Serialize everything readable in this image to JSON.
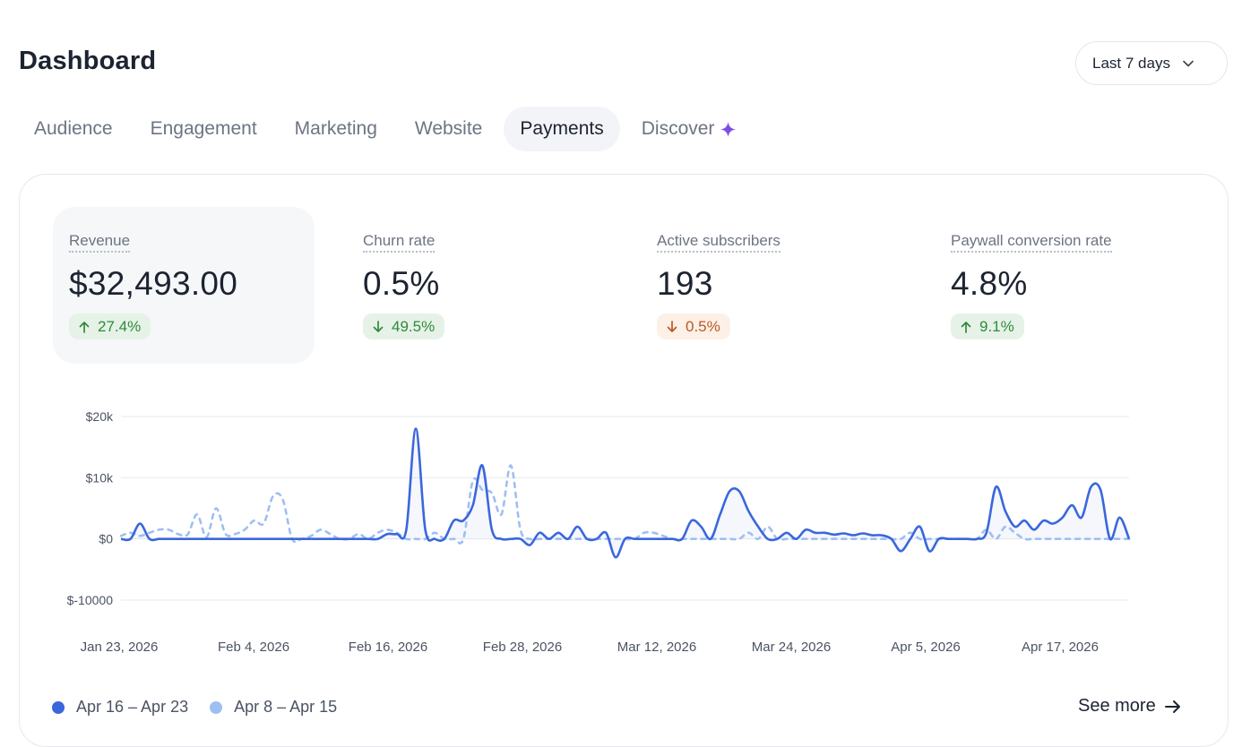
{
  "header": {
    "title": "Dashboard",
    "range_label": "Last 7 days"
  },
  "tabs": [
    {
      "label": "Audience",
      "active": false
    },
    {
      "label": "Engagement",
      "active": false
    },
    {
      "label": "Marketing",
      "active": false
    },
    {
      "label": "Website",
      "active": false
    },
    {
      "label": "Payments",
      "active": true
    },
    {
      "label": "Discover",
      "active": false
    }
  ],
  "metrics": [
    {
      "label": "Revenue",
      "value": "$32,493.00",
      "change": "27.4%",
      "direction": "up",
      "sentiment": "good"
    },
    {
      "label": "Churn rate",
      "value": "0.5%",
      "change": "49.5%",
      "direction": "down",
      "sentiment": "good"
    },
    {
      "label": "Active subscribers",
      "value": "193",
      "change": "0.5%",
      "direction": "down",
      "sentiment": "bad"
    },
    {
      "label": "Paywall conversion rate",
      "value": "4.8%",
      "change": "9.1%",
      "direction": "up",
      "sentiment": "good"
    }
  ],
  "colors": {
    "current": "#3a67dc",
    "previous": "#9ebff2",
    "good_text": "#2f8a3b",
    "bad_text": "#b75a22",
    "sparkle": "#7b4fe0"
  },
  "chart_data": {
    "type": "line",
    "y_ticks": [
      "$20k",
      "$10k",
      "$0",
      "$-10000"
    ],
    "ylim": [
      -10000,
      20000
    ],
    "x_tick_labels": [
      "Jan 23, 2026",
      "Feb 4, 2026",
      "Feb 16, 2026",
      "Feb 28, 2026",
      "Mar 12, 2026",
      "Mar 24, 2026",
      "Apr 5, 2026",
      "Apr 17, 2026"
    ],
    "grid": true,
    "legend_position": "bottom-left",
    "x_start": "2026-01-23",
    "x_end": "2026-04-23",
    "series": [
      {
        "name": "Apr 16 – Apr 23",
        "style": "solid",
        "values": [
          0,
          0,
          2500,
          0,
          0,
          0,
          0,
          0,
          0,
          0,
          0,
          0,
          0,
          0,
          0,
          0,
          0,
          0,
          0,
          0,
          0,
          0,
          0,
          0,
          0,
          0,
          0,
          0,
          800,
          800,
          1500,
          18000,
          1500,
          0,
          0,
          3000,
          3000,
          5500,
          12000,
          1500,
          0,
          0,
          0,
          -1000,
          1000,
          0,
          1000,
          0,
          2000,
          0,
          0,
          1000,
          -3000,
          0,
          0,
          0,
          0,
          0,
          0,
          0,
          3000,
          2000,
          0,
          4000,
          7800,
          7800,
          4500,
          2000,
          0,
          0,
          1000,
          0,
          1500,
          1000,
          1000,
          700,
          900,
          600,
          900,
          600,
          600,
          0,
          -2000,
          0,
          2000,
          -2000,
          0,
          0,
          0,
          0,
          0,
          1000,
          8500,
          4500,
          2000,
          3000,
          1500,
          3000,
          2500,
          3500,
          5500,
          3500,
          8500,
          8000,
          0,
          3500,
          0
        ]
      },
      {
        "name": "Apr 8 – Apr 15",
        "style": "dashed",
        "values": [
          500,
          1000,
          500,
          1000,
          1500,
          1500,
          800,
          700,
          4000,
          300,
          5000,
          800,
          800,
          1500,
          3000,
          2500,
          7000,
          6500,
          0,
          0,
          500,
          1500,
          800,
          0,
          0,
          800,
          0,
          1000,
          1500,
          1000,
          0,
          0,
          0,
          1000,
          0,
          0,
          0,
          9500,
          8000,
          7500,
          4000,
          12000,
          1500,
          0,
          0,
          0,
          0,
          0,
          0,
          0,
          0,
          0,
          0,
          0,
          0,
          1000,
          1000,
          500,
          0,
          0,
          0,
          0,
          0,
          0,
          0,
          0,
          1000,
          0,
          2000,
          0,
          0,
          0,
          0,
          0,
          0,
          0,
          0,
          0,
          0,
          0,
          0,
          0,
          0,
          1000,
          0,
          0,
          0,
          0,
          0,
          0,
          0,
          1500,
          0,
          2000,
          1000,
          0,
          0,
          0,
          0,
          0,
          0,
          0,
          0,
          0,
          0,
          0,
          0
        ]
      }
    ]
  },
  "legend": {
    "current": "Apr 16 – Apr 23",
    "previous": "Apr 8 – Apr 15"
  },
  "footer": {
    "see_more_label": "See more"
  }
}
